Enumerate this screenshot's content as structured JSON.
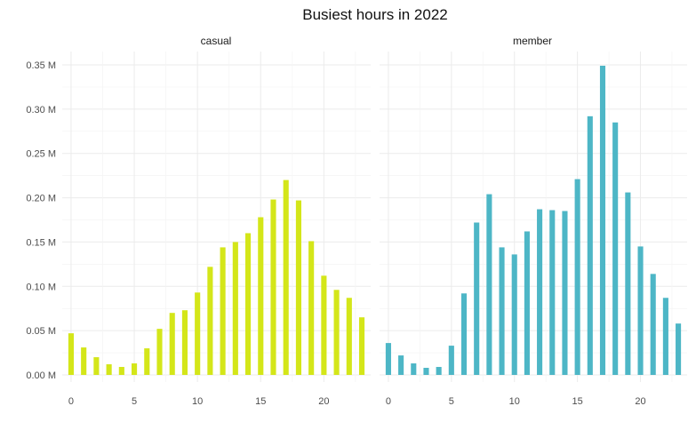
{
  "chart_data": {
    "type": "bar",
    "title": "Busiest hours in 2022",
    "xlabel": "",
    "ylabel": "",
    "x_ticks": [
      0,
      5,
      10,
      15,
      20
    ],
    "y_ticks": [
      "0.00 M",
      "0.05 M",
      "0.10 M",
      "0.15 M",
      "0.20 M",
      "0.25 M",
      "0.30 M",
      "0.35 M"
    ],
    "y_tick_values": [
      0,
      0.05,
      0.1,
      0.15,
      0.2,
      0.25,
      0.3,
      0.35
    ],
    "ylim": [
      0,
      0.35
    ],
    "xlim": [
      -0.7,
      23.7
    ],
    "unit": "M",
    "grid": true,
    "legend": "none",
    "hours": [
      0,
      1,
      2,
      3,
      4,
      5,
      6,
      7,
      8,
      9,
      10,
      11,
      12,
      13,
      14,
      15,
      16,
      17,
      18,
      19,
      20,
      21,
      22,
      23
    ],
    "facets": [
      {
        "name": "casual",
        "color": "#d4e619",
        "values": [
          0.047,
          0.031,
          0.02,
          0.012,
          0.009,
          0.013,
          0.03,
          0.052,
          0.07,
          0.073,
          0.093,
          0.122,
          0.144,
          0.15,
          0.16,
          0.178,
          0.198,
          0.22,
          0.197,
          0.151,
          0.112,
          0.096,
          0.087,
          0.065
        ]
      },
      {
        "name": "member",
        "color": "#4db6c6",
        "values": [
          0.036,
          0.022,
          0.013,
          0.008,
          0.009,
          0.033,
          0.092,
          0.172,
          0.204,
          0.144,
          0.136,
          0.162,
          0.187,
          0.186,
          0.185,
          0.221,
          0.292,
          0.349,
          0.285,
          0.206,
          0.145,
          0.114,
          0.087,
          0.058
        ]
      }
    ]
  }
}
